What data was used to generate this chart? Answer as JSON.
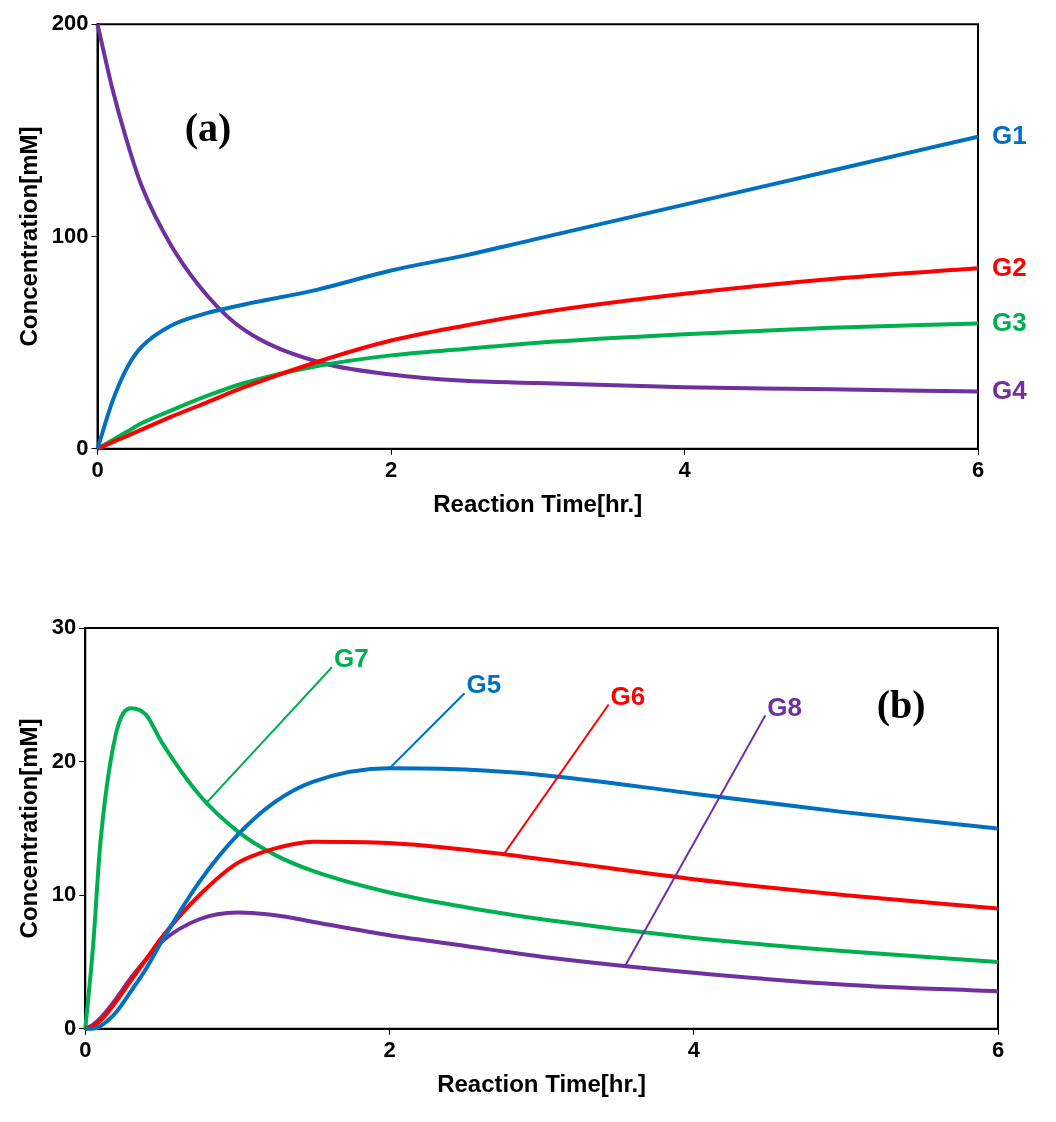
{
  "chart_data": [
    {
      "type": "line",
      "xlabel": "Reaction Time[hr.]",
      "ylabel": "Concentration[mM]",
      "annotations": [
        "(a)"
      ],
      "x": [
        0,
        0.1,
        0.2,
        0.3,
        0.5,
        0.75,
        1,
        1.5,
        2,
        2.5,
        3,
        4,
        5,
        6
      ],
      "xlim": [
        0,
        6
      ],
      "xticks": [
        0,
        2,
        4,
        6
      ],
      "ylim": [
        0,
        200
      ],
      "yticks": [
        0,
        100,
        200
      ],
      "grid": false,
      "legend": false,
      "marker": "none",
      "line_style": "solid",
      "series": [
        {
          "name": "G1",
          "color": "#0070c0",
          "values": [
            0,
            22,
            38,
            48,
            58,
            64,
            68,
            75,
            84,
            91,
            99,
            115,
            131,
            147
          ]
        },
        {
          "name": "G2",
          "color": "#ff0000",
          "values": [
            0,
            3,
            6,
            9,
            15,
            22,
            29,
            41,
            51,
            58,
            64,
            73,
            80,
            85
          ]
        },
        {
          "name": "G3",
          "color": "#00b050",
          "values": [
            0,
            4,
            8,
            12,
            18,
            25,
            31,
            39,
            44,
            47,
            50,
            54,
            57,
            59
          ]
        },
        {
          "name": "G4",
          "color": "#7030a0",
          "values": [
            200,
            170,
            145,
            124,
            96,
            72,
            56,
            41,
            35,
            32,
            31,
            29,
            28,
            27
          ]
        }
      ]
    },
    {
      "type": "line",
      "xlabel": "Reaction Time[hr.]",
      "ylabel": "Concentration[mM]",
      "annotations": [
        "(b)"
      ],
      "x": [
        0,
        0.05,
        0.1,
        0.2,
        0.3,
        0.4,
        0.5,
        0.75,
        1,
        1.25,
        1.5,
        2,
        2.5,
        3,
        4,
        5,
        6
      ],
      "xlim": [
        0,
        6
      ],
      "xticks": [
        0,
        2,
        4,
        6
      ],
      "ylim": [
        0,
        30
      ],
      "yticks": [
        0,
        10,
        20,
        30
      ],
      "grid": false,
      "legend": false,
      "marker": "none",
      "line_style": "solid",
      "series": [
        {
          "name": "G5",
          "color": "#0070c0",
          "values": [
            0,
            0,
            0.2,
            1.2,
            2.8,
            4.5,
            6.5,
            11,
            14.5,
            17,
            18.5,
            19.5,
            19.4,
            19,
            17.6,
            16.2,
            15
          ]
        },
        {
          "name": "G6",
          "color": "#ff0000",
          "values": [
            0,
            0.2,
            0.6,
            2,
            3.6,
            5.2,
            6.8,
            10,
            12.4,
            13.5,
            14,
            13.9,
            13.4,
            12.7,
            11.2,
            10,
            9
          ]
        },
        {
          "name": "G7",
          "color": "#00b050",
          "values": [
            0,
            6,
            14,
            22,
            24,
            23.5,
            21.5,
            17.5,
            14.8,
            13,
            11.8,
            10.2,
            9.1,
            8.2,
            6.8,
            5.8,
            5
          ]
        },
        {
          "name": "G8",
          "color": "#7030a0",
          "values": [
            0,
            0.3,
            0.8,
            2.2,
            3.8,
            5.2,
            6.5,
            8.2,
            8.7,
            8.5,
            8,
            7,
            6.2,
            5.4,
            4.2,
            3.3,
            2.8
          ]
        }
      ]
    }
  ]
}
